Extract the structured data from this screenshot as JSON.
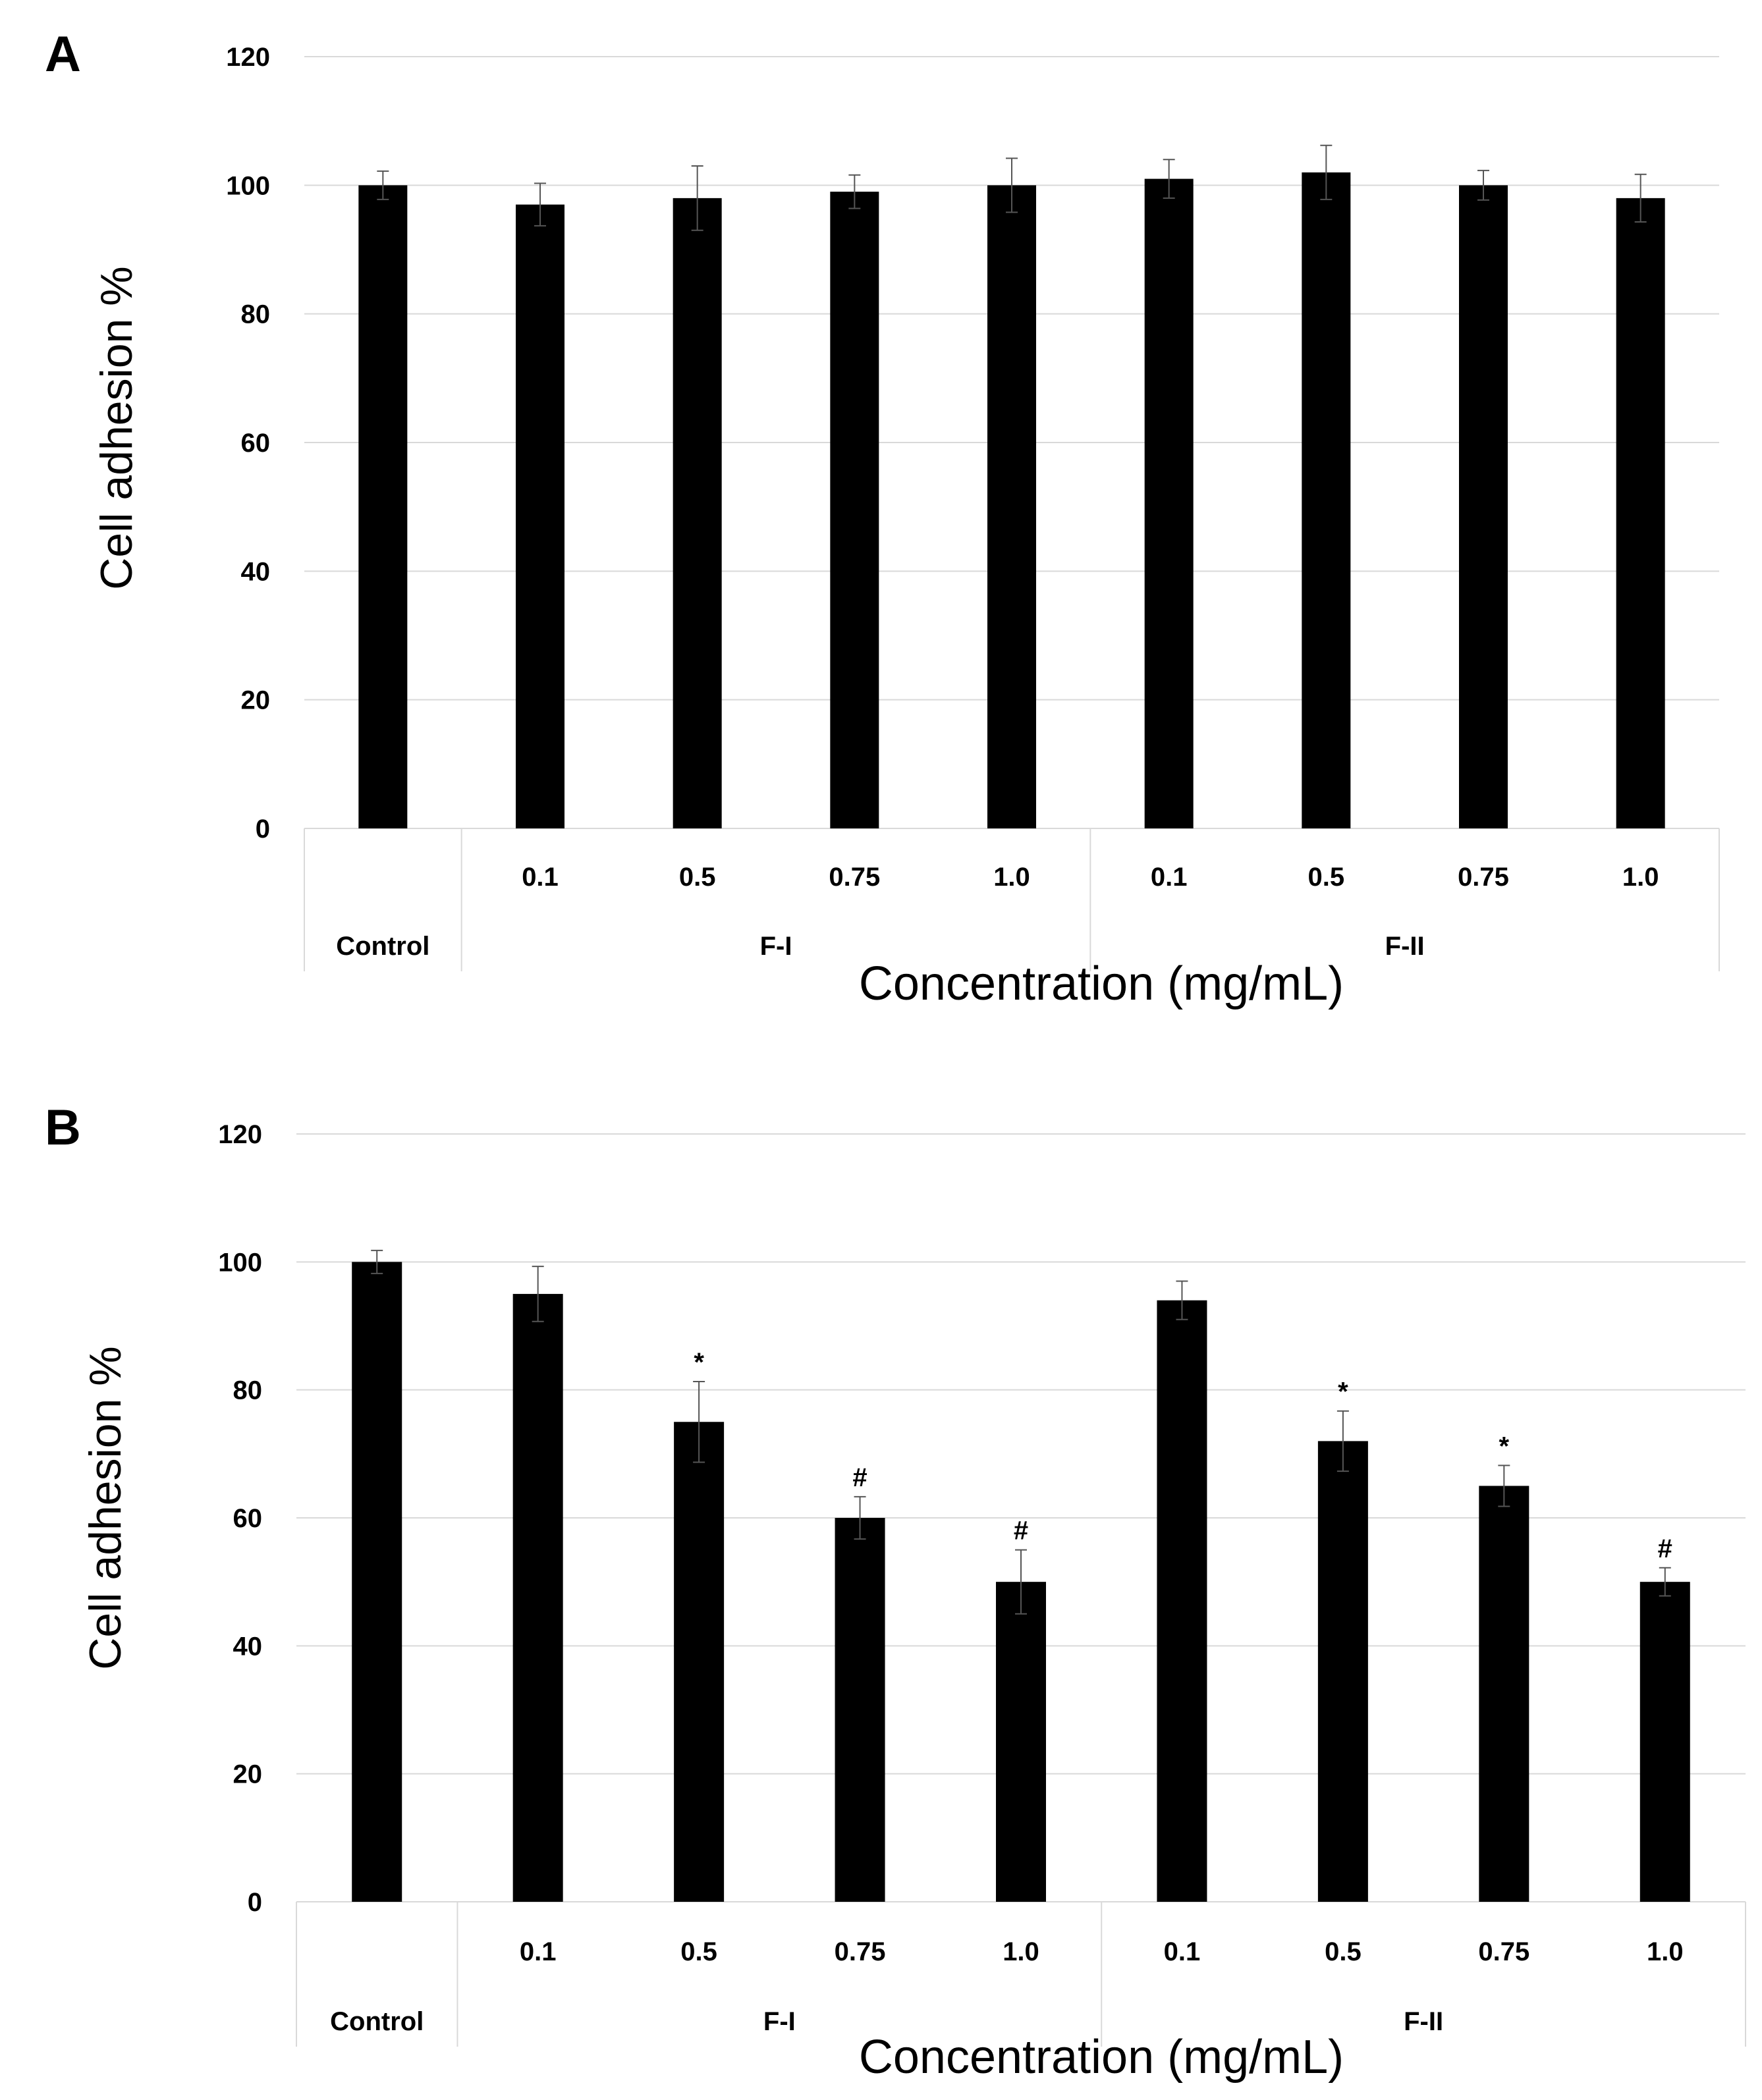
{
  "colors": {
    "bar": "#000000",
    "grid": "#d9d9d9",
    "text": "#000000",
    "background": "#ffffff"
  },
  "chart_data": [
    {
      "panel_label": "A",
      "type": "bar",
      "ylabel": "Cell adhesion %",
      "xlabel": "Concentration (mg/mL)",
      "ylim": [
        0,
        120
      ],
      "yticks": [
        0,
        20,
        40,
        60,
        80,
        100,
        120
      ],
      "grid": true,
      "groups": [
        "Control",
        "F-I",
        "F-II"
      ],
      "categories": [
        {
          "tick": "",
          "group": "Control",
          "value": 100,
          "error": 2.2,
          "annotation": ""
        },
        {
          "tick": "0.1",
          "group": "F-I",
          "value": 97,
          "error": 3.3,
          "annotation": ""
        },
        {
          "tick": "0.5",
          "group": "F-I",
          "value": 98,
          "error": 5.0,
          "annotation": ""
        },
        {
          "tick": "0.75",
          "group": "F-I",
          "value": 99,
          "error": 2.6,
          "annotation": ""
        },
        {
          "tick": "1.0",
          "group": "F-I",
          "value": 100,
          "error": 4.2,
          "annotation": ""
        },
        {
          "tick": "0.1",
          "group": "F-II",
          "value": 101,
          "error": 3.0,
          "annotation": ""
        },
        {
          "tick": "0.5",
          "group": "F-II",
          "value": 102,
          "error": 4.2,
          "annotation": ""
        },
        {
          "tick": "0.75",
          "group": "F-II",
          "value": 100,
          "error": 2.3,
          "annotation": ""
        },
        {
          "tick": "1.0",
          "group": "F-II",
          "value": 98,
          "error": 3.7,
          "annotation": ""
        }
      ]
    },
    {
      "panel_label": "B",
      "type": "bar",
      "ylabel": "Cell adhesion %",
      "xlabel": "Concentration (mg/mL)",
      "ylim": [
        0,
        120
      ],
      "yticks": [
        0,
        20,
        40,
        60,
        80,
        100,
        120
      ],
      "grid": true,
      "groups": [
        "Control",
        "F-I",
        "F-II"
      ],
      "categories": [
        {
          "tick": "",
          "group": "Control",
          "value": 100,
          "error": 1.8,
          "annotation": ""
        },
        {
          "tick": "0.1",
          "group": "F-I",
          "value": 95,
          "error": 4.3,
          "annotation": ""
        },
        {
          "tick": "0.5",
          "group": "F-I",
          "value": 75,
          "error": 6.3,
          "annotation": "*"
        },
        {
          "tick": "0.75",
          "group": "F-I",
          "value": 60,
          "error": 3.3,
          "annotation": "#"
        },
        {
          "tick": "1.0",
          "group": "F-I",
          "value": 50,
          "error": 5.0,
          "annotation": "#"
        },
        {
          "tick": "0.1",
          "group": "F-II",
          "value": 94,
          "error": 3.0,
          "annotation": ""
        },
        {
          "tick": "0.5",
          "group": "F-II",
          "value": 72,
          "error": 4.7,
          "annotation": "*"
        },
        {
          "tick": "0.75",
          "group": "F-II",
          "value": 65,
          "error": 3.2,
          "annotation": "*"
        },
        {
          "tick": "1.0",
          "group": "F-II",
          "value": 50,
          "error": 2.2,
          "annotation": "#"
        }
      ]
    }
  ]
}
